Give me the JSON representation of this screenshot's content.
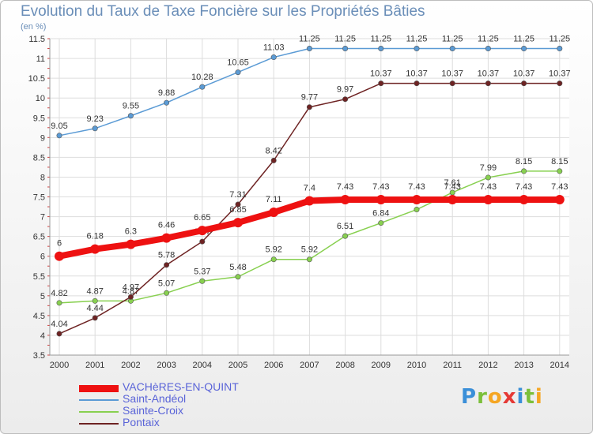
{
  "chart_data": {
    "type": "line",
    "title": "Evolution du Taux de Taxe Foncière sur les Propriétés Bâties",
    "subtitle": "(en %)",
    "xlabel": "",
    "ylabel": "",
    "x": [
      "2000",
      "2001",
      "2002",
      "2003",
      "2004",
      "2005",
      "2006",
      "2007",
      "2008",
      "2009",
      "2010",
      "2011",
      "2012",
      "2013",
      "2014"
    ],
    "ylim": [
      3.5,
      11.5
    ],
    "yticks": [
      "3.5",
      "4",
      "4.5",
      "5",
      "5.5",
      "6",
      "6.5",
      "7",
      "7.5",
      "8",
      "8.5",
      "9",
      "9.5",
      "10",
      "10.5",
      "11",
      "11.5"
    ],
    "grid": true,
    "legend_position": "bottom-left",
    "series": [
      {
        "name": "VACHèRES-EN-QUINT",
        "color": "#ee1111",
        "emphasis": true,
        "values": [
          6,
          6.18,
          6.3,
          6.46,
          6.65,
          6.85,
          7.11,
          7.4,
          7.43,
          7.43,
          7.43,
          7.43,
          7.43,
          7.43,
          7.43
        ],
        "labels": [
          "6",
          "6.18",
          "6.3",
          "6.46",
          "6.65",
          "6.85",
          "7.11",
          "7.4",
          "7.43",
          "7.43",
          "7.43",
          "7.43",
          "7.43",
          "7.43",
          "7.43"
        ]
      },
      {
        "name": "Saint-Andéol",
        "color": "#5b9bd5",
        "emphasis": false,
        "values": [
          9.05,
          9.23,
          9.55,
          9.88,
          10.28,
          10.65,
          11.03,
          11.25,
          11.25,
          11.25,
          11.25,
          11.25,
          11.25,
          11.25,
          11.25
        ],
        "labels": [
          "9.05",
          "9.23",
          "9.55",
          "9.88",
          "10.28",
          "10.65",
          "11.03",
          "11.25",
          "11.25",
          "11.25",
          "11.25",
          "11.25",
          "11.25",
          "11.25",
          "11.25"
        ]
      },
      {
        "name": "Sainte-Croix",
        "color": "#88d050",
        "emphasis": false,
        "values": [
          4.82,
          4.87,
          4.87,
          5.07,
          5.37,
          5.48,
          5.92,
          5.92,
          6.51,
          6.84,
          7.18,
          7.61,
          7.99,
          8.15,
          8.15
        ],
        "labels": [
          "4.82",
          "4.87",
          "4.87",
          "5.07",
          "5.37",
          "5.48",
          "5.92",
          "5.92",
          "6.51",
          "6.84",
          "7.18",
          "7.61",
          "7.99",
          "8.15",
          "8.15"
        ]
      },
      {
        "name": "Pontaix",
        "color": "#6e2323",
        "emphasis": false,
        "values": [
          4.04,
          4.44,
          4.97,
          5.78,
          6.37,
          7.31,
          8.42,
          9.77,
          9.97,
          10.37,
          10.37,
          10.37,
          10.37,
          10.37,
          10.37
        ],
        "labels": [
          "4.04",
          "4.44",
          "4.97",
          "5.78",
          "6.37",
          "7.31",
          "8.42",
          "9.77",
          "9.97",
          "10.37",
          "10.37",
          "10.37",
          "10.37",
          "10.37",
          "10.37"
        ]
      }
    ]
  },
  "brand": {
    "letters": [
      "P",
      "r",
      "o",
      "x",
      "i",
      "t",
      "i"
    ],
    "colors": [
      "#3a8fd8",
      "#7bbf3a",
      "#f5a623",
      "#e53935",
      "#3a8fd8",
      "#7bbf3a",
      "#f5a623"
    ]
  }
}
